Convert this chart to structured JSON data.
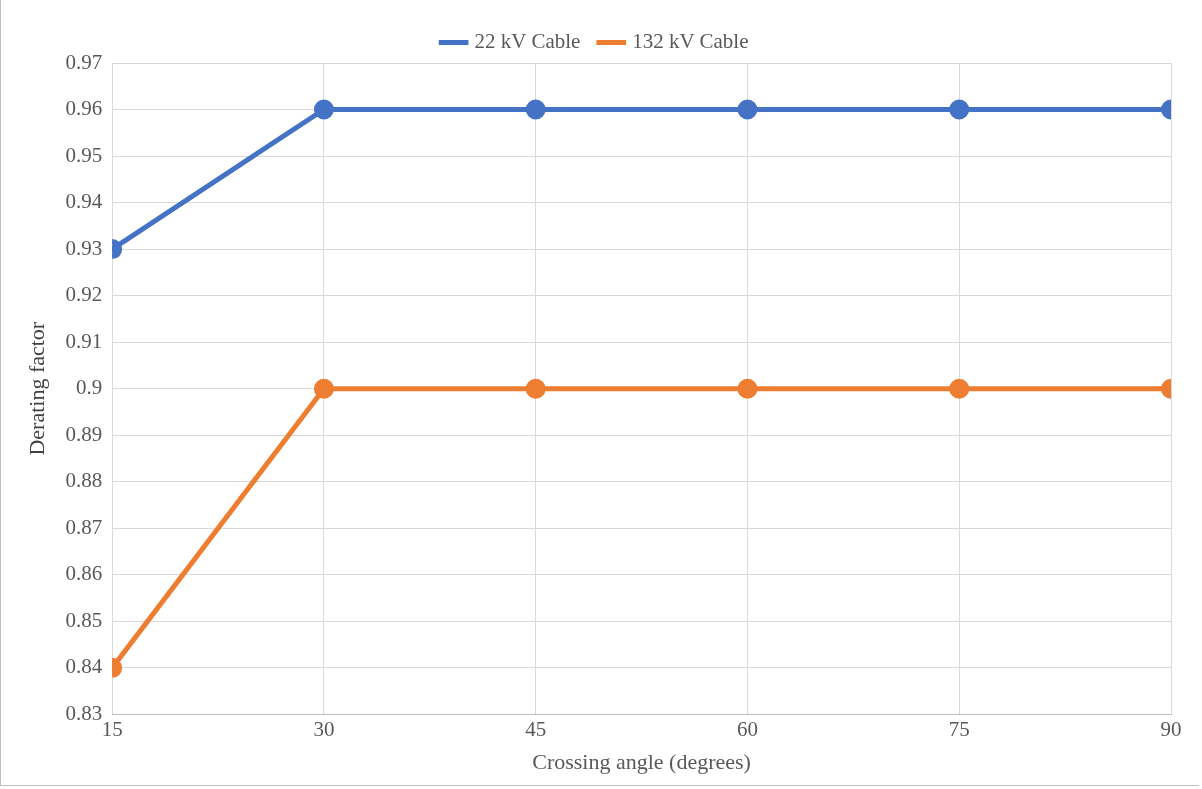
{
  "chart_data": {
    "type": "line",
    "xlabel": "Crossing angle (degrees)",
    "ylabel": "Derating factor",
    "x": [
      15,
      30,
      45,
      60,
      75,
      90
    ],
    "series": [
      {
        "name": "22 kV Cable",
        "color": "#4472c4",
        "values": [
          0.93,
          0.96,
          0.96,
          0.96,
          0.96,
          0.96
        ]
      },
      {
        "name": "132 kV Cable",
        "color": "#ed7d31",
        "values": [
          0.84,
          0.9,
          0.9,
          0.9,
          0.9,
          0.9
        ]
      }
    ],
    "xlim": [
      15,
      90
    ],
    "xticks": [
      15,
      30,
      45,
      60,
      75,
      90
    ],
    "ylim": [
      0.83,
      0.97
    ],
    "yticks": [
      0.83,
      0.84,
      0.85,
      0.86,
      0.87,
      0.88,
      0.89,
      0.9,
      0.91,
      0.92,
      0.93,
      0.94,
      0.95,
      0.96,
      0.97
    ],
    "grid": true,
    "legend": "top",
    "marker": "circle",
    "line_style": "solid"
  }
}
